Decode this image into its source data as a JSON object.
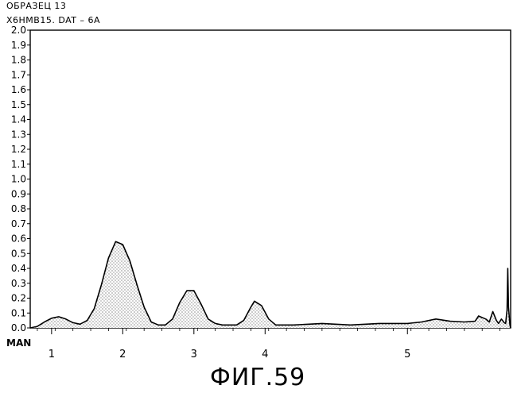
{
  "header": {
    "sample_label": "ОБРАЗЕЦ 13",
    "file_label": "X6HMB15. DAT – 6A"
  },
  "figure_caption": "ФИГ.59",
  "chart_data": {
    "type": "area",
    "title": "",
    "xlabel": "MAN",
    "ylabel": "",
    "ylim": [
      0,
      2.0
    ],
    "xlim": [
      0.7,
      7.45
    ],
    "y_ticks": [
      "0.0",
      "0.1",
      "0.2",
      "0.3",
      "0.4",
      "0.5",
      "0.6",
      "0.7",
      "0.8",
      "0.9",
      "1.0",
      "1.1",
      "1.2",
      "1.3",
      "1.4",
      "1.5",
      "1.6",
      "1.7",
      "1.8",
      "1.9",
      "2.0"
    ],
    "x_tick_labels": [
      {
        "x": 1,
        "label": "1"
      },
      {
        "x": 2,
        "label": "2"
      },
      {
        "x": 3,
        "label": "3"
      },
      {
        "x": 4,
        "label": "4"
      },
      {
        "x": 6,
        "label": "5"
      }
    ],
    "series": [
      {
        "values": [
          [
            0.7,
            0.0
          ],
          [
            0.8,
            0.01
          ],
          [
            0.9,
            0.04
          ],
          [
            1.0,
            0.065
          ],
          [
            1.1,
            0.075
          ],
          [
            1.2,
            0.06
          ],
          [
            1.3,
            0.035
          ],
          [
            1.4,
            0.025
          ],
          [
            1.5,
            0.05
          ],
          [
            1.6,
            0.13
          ],
          [
            1.7,
            0.29
          ],
          [
            1.8,
            0.47
          ],
          [
            1.9,
            0.58
          ],
          [
            2.0,
            0.56
          ],
          [
            2.1,
            0.45
          ],
          [
            2.2,
            0.29
          ],
          [
            2.3,
            0.14
          ],
          [
            2.4,
            0.04
          ],
          [
            2.5,
            0.02
          ],
          [
            2.6,
            0.02
          ],
          [
            2.7,
            0.06
          ],
          [
            2.8,
            0.17
          ],
          [
            2.9,
            0.25
          ],
          [
            3.0,
            0.25
          ],
          [
            3.1,
            0.16
          ],
          [
            3.2,
            0.06
          ],
          [
            3.3,
            0.03
          ],
          [
            3.4,
            0.02
          ],
          [
            3.5,
            0.02
          ],
          [
            3.6,
            0.02
          ],
          [
            3.7,
            0.05
          ],
          [
            3.8,
            0.14
          ],
          [
            3.85,
            0.18
          ],
          [
            3.95,
            0.15
          ],
          [
            4.05,
            0.06
          ],
          [
            4.15,
            0.02
          ],
          [
            4.4,
            0.02
          ],
          [
            4.8,
            0.03
          ],
          [
            5.2,
            0.02
          ],
          [
            5.6,
            0.03
          ],
          [
            6.0,
            0.03
          ],
          [
            6.2,
            0.04
          ],
          [
            6.4,
            0.06
          ],
          [
            6.6,
            0.045
          ],
          [
            6.8,
            0.04
          ],
          [
            6.95,
            0.045
          ],
          [
            7.0,
            0.08
          ],
          [
            7.1,
            0.06
          ],
          [
            7.15,
            0.04
          ],
          [
            7.2,
            0.11
          ],
          [
            7.25,
            0.05
          ],
          [
            7.28,
            0.03
          ],
          [
            7.32,
            0.06
          ],
          [
            7.36,
            0.035
          ],
          [
            7.38,
            0.03
          ],
          [
            7.4,
            0.12
          ],
          [
            7.41,
            0.4
          ],
          [
            7.42,
            0.14
          ],
          [
            7.44,
            0.02
          ],
          [
            7.45,
            0.0
          ]
        ]
      }
    ]
  }
}
